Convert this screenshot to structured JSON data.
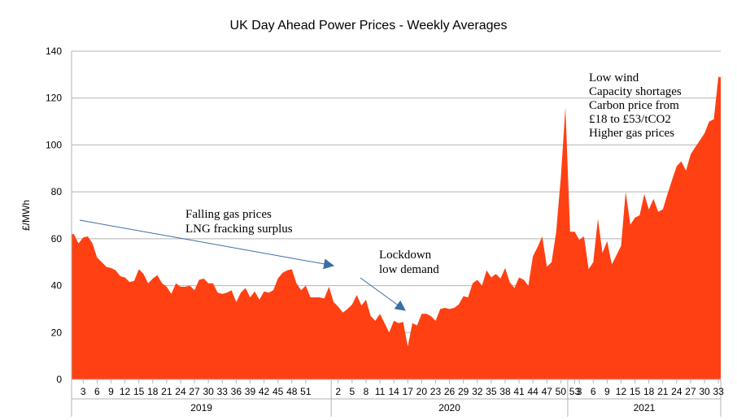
{
  "chart_data": {
    "type": "area",
    "title": "UK Day Ahead Power Prices - Weekly Averages",
    "ylabel": "£/MWh",
    "ylim": [
      0,
      140
    ],
    "yticks": [
      0,
      20,
      40,
      60,
      80,
      100,
      120,
      140
    ],
    "grid": true,
    "legend": "none",
    "color": "#ff4013",
    "series": [
      {
        "years": [
          {
            "year": "2019",
            "weekLabels": [
              "3",
              "6",
              "9",
              "12",
              "15",
              "18",
              "21",
              "24",
              "27",
              "30",
              "33",
              "36",
              "39",
              "42",
              "45",
              "48",
              "51"
            ],
            "values": [
              62,
              58,
              60.5,
              61,
              58,
              52,
              50,
              48,
              47.5,
              46.5,
              44,
              43.5,
              41.5,
              42,
              47,
              45,
              41,
              43,
              44.5,
              41,
              39.5,
              36.5,
              41,
              39.5,
              39.5,
              40,
              38,
              42.5,
              43,
              41,
              41,
              37,
              36.5,
              37,
              38,
              33,
              37,
              39,
              35,
              37.5,
              34,
              37.5,
              37,
              38,
              43,
              45.5,
              46.5,
              47,
              41,
              38,
              40,
              35,
              35,
              35,
              34.5,
              39.5
            ]
          },
          {
            "year": "2020",
            "weekLabels": [
              "2",
              "5",
              "8",
              "11",
              "14",
              "17",
              "20",
              "23",
              "26",
              "29",
              "32",
              "35",
              "38",
              "41",
              "44",
              "47",
              "50",
              "53"
            ],
            "values": [
              33,
              31,
              28.5,
              30,
              32,
              36,
              31.5,
              34,
              27,
              25,
              28,
              24,
              20,
              25,
              24,
              24.5,
              14,
              24,
              23,
              28,
              28,
              27,
              25,
              30,
              30.5,
              30,
              30.5,
              32,
              35.5,
              35,
              41,
              42.5,
              40,
              46.5,
              43.5,
              45,
              43,
              47.5,
              41.5,
              39,
              43.5,
              42.5,
              40,
              52.5,
              56.5,
              61,
              48,
              50,
              62.5,
              86,
              116
            ]
          },
          {
            "year": "2021",
            "weekLabels": [
              "3",
              "6",
              "9",
              "12",
              "15",
              "18",
              "21",
              "24",
              "27",
              "30",
              "33"
            ],
            "values": [
              63,
              63,
              59.5,
              61,
              47,
              50,
              68.5,
              54,
              59,
              49,
              53,
              57,
              80,
              66,
              69,
              70,
              79,
              72.5,
              77,
              71.5,
              72.5,
              79,
              85,
              91,
              93,
              89,
              96,
              99,
              102,
              105,
              110,
              111,
              129
            ]
          }
        ]
      }
    ],
    "annotations": [
      {
        "lines": [
          "Falling gas prices",
          "LNG fracking surplus"
        ],
        "arrow_from": {
          "year": "2019",
          "week": "3"
        },
        "arrow_to": {
          "year": "2020",
          "week": "2"
        }
      },
      {
        "lines": [
          "Lockdown",
          "low demand"
        ]
      },
      {
        "lines": [
          "Low wind",
          "Capacity shortages",
          "Carbon price from",
          "£18 to £53/tCO2",
          "Higher gas prices"
        ]
      }
    ]
  }
}
